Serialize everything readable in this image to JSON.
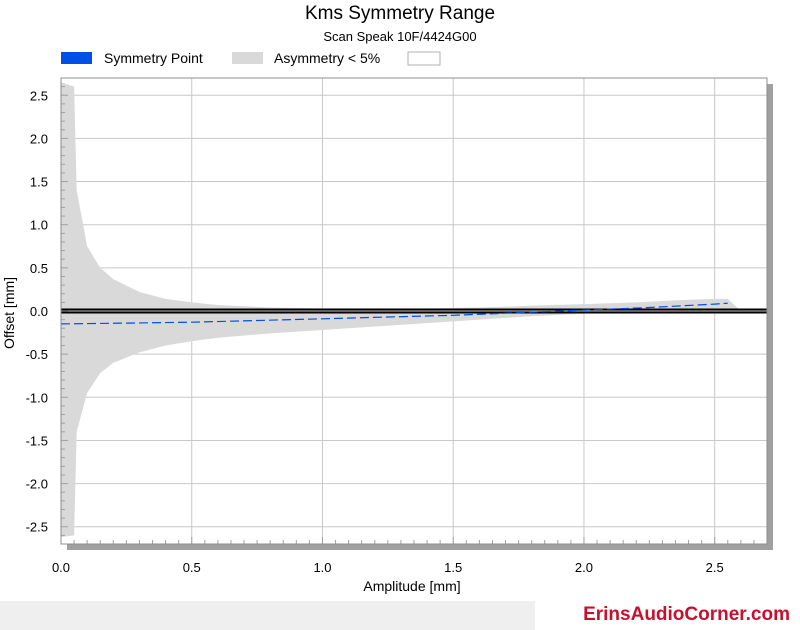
{
  "chart_data": {
    "type": "area",
    "title": "Kms Symmetry Range",
    "subtitle": "Scan Speak 10F/4424G00",
    "xlabel": "Amplitude [mm]",
    "ylabel": "Offset [mm]",
    "xlim": [
      0,
      2.7
    ],
    "ylim": [
      -2.7,
      2.7
    ],
    "x_ticks": [
      "0.0",
      "0.5",
      "1.0",
      "1.5",
      "2.0",
      "2.5"
    ],
    "y_ticks": [
      "2.5",
      "2.0",
      "1.5",
      "1.0",
      "0.5",
      "0.0",
      "-0.5",
      "-1.0",
      "-1.5",
      "-2.0",
      "-2.5"
    ],
    "grid": true,
    "legend_position": "top-left",
    "legend": [
      {
        "label": "Symmetry Point",
        "color": "#0050e6"
      },
      {
        "label": "Asymmetry < 5%",
        "color": "#d9d9d9"
      }
    ],
    "series": [
      {
        "name": "Symmetry Point",
        "color": "#0050e6",
        "style": "dashed",
        "x": [
          0.0,
          0.25,
          0.5,
          0.75,
          1.0,
          1.25,
          1.5,
          1.75,
          2.0,
          2.25,
          2.5,
          2.55
        ],
        "y": [
          -0.15,
          -0.14,
          -0.13,
          -0.11,
          -0.09,
          -0.07,
          -0.05,
          -0.02,
          0.01,
          0.04,
          0.08,
          0.09
        ]
      },
      {
        "name": "Asymmetry < 5%",
        "color": "#d9d9d9",
        "x": [
          0.0,
          0.05,
          0.06,
          0.1,
          0.15,
          0.2,
          0.3,
          0.4,
          0.5,
          0.6,
          0.8,
          1.0,
          1.2,
          1.4,
          1.6,
          1.8,
          2.0,
          2.2,
          2.4,
          2.5,
          2.55,
          2.6
        ],
        "upper": [
          2.65,
          2.6,
          1.4,
          0.75,
          0.5,
          0.37,
          0.22,
          0.14,
          0.1,
          0.07,
          0.04,
          0.03,
          0.03,
          0.03,
          0.04,
          0.06,
          0.08,
          0.1,
          0.13,
          0.14,
          0.14,
          0.0
        ],
        "lower": [
          -2.62,
          -2.6,
          -1.4,
          -0.95,
          -0.72,
          -0.6,
          -0.48,
          -0.4,
          -0.35,
          -0.31,
          -0.26,
          -0.22,
          -0.18,
          -0.14,
          -0.1,
          -0.06,
          -0.03,
          -0.01,
          0.0,
          0.01,
          0.02,
          0.0
        ]
      }
    ],
    "reference_line_y": 0.0
  },
  "colors": {
    "background": "#ffffff",
    "grid": "#c8c8c8",
    "frame": "#8c8c8c",
    "shadow": "#a0a0a0",
    "zero_line": "#000000",
    "footer_band": "#efefef",
    "brand_text": "#c8102e"
  },
  "footer": {
    "brand": "ErinsAudioCorner.com"
  }
}
